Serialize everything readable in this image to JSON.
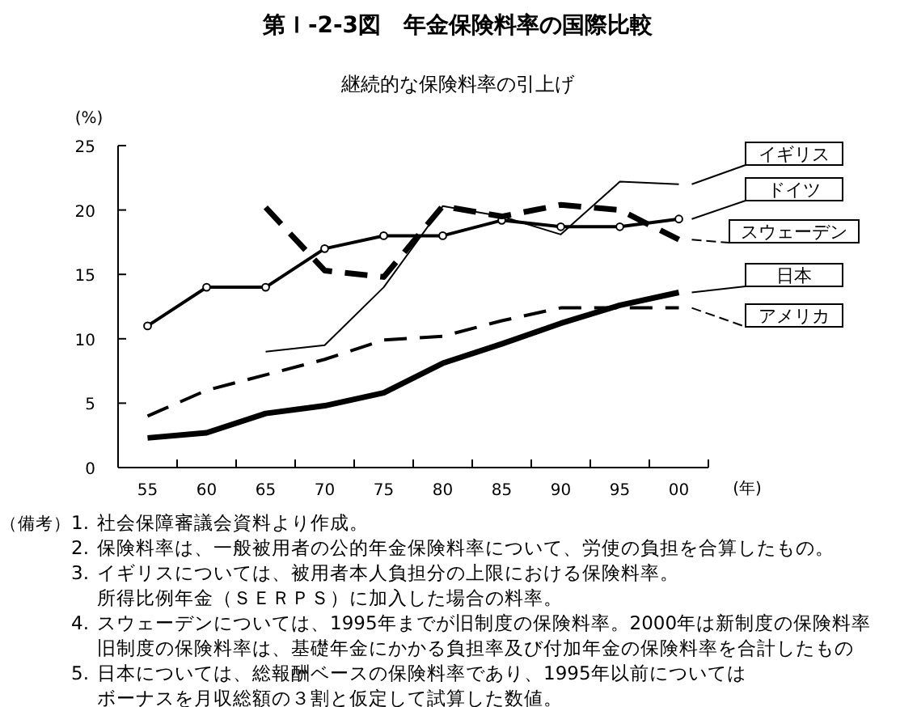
{
  "chart_data": {
    "type": "line",
    "title": "第Ｉ-2-3図　年金保険料率の国際比較",
    "subtitle": "継続的な保険料率の引上げ",
    "ylabel": "(%)",
    "xlabel": "(年)",
    "categories": [
      "55",
      "60",
      "65",
      "70",
      "75",
      "80",
      "85",
      "90",
      "95",
      "00"
    ],
    "ylim": [
      0,
      25
    ],
    "yticks": [
      0,
      5,
      10,
      15,
      20,
      25
    ],
    "grid": false,
    "legend": "right",
    "series": [
      {
        "name": "イギリス",
        "color": "#000000",
        "line_style": "solid",
        "marker": "none",
        "values": [
          null,
          null,
          9.0,
          9.5,
          14.0,
          20.3,
          19.5,
          18.1,
          22.2,
          22.0
        ]
      },
      {
        "name": "ドイツ",
        "color": "#000000",
        "line_style": "solid",
        "marker": "circle",
        "values": [
          11.0,
          14.0,
          14.0,
          17.0,
          18.0,
          18.0,
          19.2,
          18.7,
          18.7,
          19.3
        ]
      },
      {
        "name": "スウェーデン",
        "color": "#000000",
        "line_style": "dashed",
        "marker": "none",
        "values": [
          null,
          null,
          20.2,
          15.3,
          14.8,
          20.3,
          19.5,
          20.4,
          20.0,
          17.7
        ]
      },
      {
        "name": "日本",
        "color": "#000000",
        "line_style": "solid",
        "marker": "none",
        "values": [
          2.3,
          2.7,
          4.2,
          4.8,
          5.8,
          8.1,
          9.6,
          11.2,
          12.6,
          13.6
        ]
      },
      {
        "name": "アメリカ",
        "color": "#000000",
        "line_style": "dashed",
        "marker": "none",
        "values": [
          4.0,
          6.0,
          7.2,
          8.4,
          9.9,
          10.2,
          11.4,
          12.4,
          12.4,
          12.4
        ]
      }
    ],
    "annotations": [
      "（備考）",
      "1.　社会保障審議会資料より作成。",
      "2.　保険料率は、一般被用者の公的年金保険料率について、労使の負担を合算したもの。",
      "3.　イギリスについては、被用者本人負担分の上限における保険料率。",
      "所得比例年金（ＳＥＲＰＳ）に加入した場合の料率。",
      "4.　スウェーデンについては、1995年までが旧制度の保険料率。2000年は新制度の保険料率",
      "旧制度の保険料率は、基礎年金にかかる負担率及び付加年金の保険料率を合計したもの",
      "5.　日本については、総報酬ベースの保険料率であり、1995年以前については",
      "ボーナスを月収総額の３割と仮定して試算した数値。"
    ]
  }
}
